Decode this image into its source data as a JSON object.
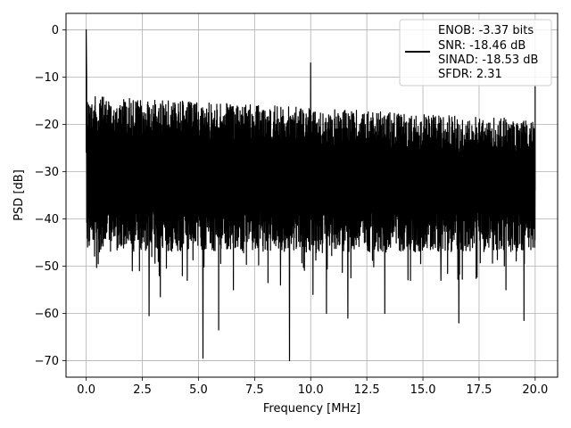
{
  "chart_data": {
    "type": "line",
    "xlabel": "Frequency [MHz]",
    "ylabel": "PSD [dB]",
    "xlim": [
      -0.9,
      21.0
    ],
    "ylim": [
      -73.5,
      3.5
    ],
    "xticks": [
      0.0,
      2.5,
      5.0,
      7.5,
      10.0,
      12.5,
      15.0,
      17.5,
      20.0
    ],
    "xtick_labels": [
      "0.0",
      "2.5",
      "5.0",
      "7.5",
      "10.0",
      "12.5",
      "15.0",
      "17.5",
      "20.0"
    ],
    "yticks": [
      0,
      -10,
      -20,
      -30,
      -40,
      -50,
      -60,
      -70
    ],
    "ytick_labels": [
      "0",
      "−10",
      "−20",
      "−30",
      "−40",
      "−50",
      "−60",
      "−70"
    ],
    "grid": true,
    "legend_position": "top-right",
    "legend": [
      "ENOB: -3.37 bits",
      "SNR: -18.46 dB",
      "SINAD: -18.53 dB",
      "SFDR: 2.31"
    ],
    "line_color": "#000000",
    "series": [
      {
        "description_of_trace": "dense noise floor spectrum from 0 to 20 MHz",
        "x_range": [
          0.0,
          20.0
        ],
        "dc_peak": {
          "x": 0.0,
          "y": 0.0
        },
        "spur_peak": {
          "x": 10.0,
          "y": -7.0
        },
        "edge_peak": {
          "x": 20.0,
          "y": -12.0
        },
        "noise_upper_envelope_start": -14.0,
        "noise_upper_envelope_end": -19.0,
        "noise_band_low": -40.0,
        "noise_band_high": -20.0,
        "deep_nulls": [
          {
            "x": 2.8,
            "y": -60.5
          },
          {
            "x": 3.3,
            "y": -56.5
          },
          {
            "x": 5.2,
            "y": -69.5
          },
          {
            "x": 5.9,
            "y": -63.5
          },
          {
            "x": 9.05,
            "y": -70.0
          },
          {
            "x": 10.7,
            "y": -60.0
          },
          {
            "x": 11.65,
            "y": -61.0
          },
          {
            "x": 13.3,
            "y": -60.0
          },
          {
            "x": 16.6,
            "y": -62.0
          },
          {
            "x": 19.5,
            "y": -61.5
          },
          {
            "x": 2.05,
            "y": -51.0
          },
          {
            "x": 3.25,
            "y": -52.0
          },
          {
            "x": 4.5,
            "y": -53.0
          },
          {
            "x": 6.55,
            "y": -55.0
          },
          {
            "x": 8.1,
            "y": -53.5
          },
          {
            "x": 8.65,
            "y": -54.0
          },
          {
            "x": 10.1,
            "y": -56.0
          },
          {
            "x": 14.45,
            "y": -53.0
          },
          {
            "x": 15.8,
            "y": -53.0
          },
          {
            "x": 18.7,
            "y": -55.0
          }
        ]
      }
    ]
  }
}
